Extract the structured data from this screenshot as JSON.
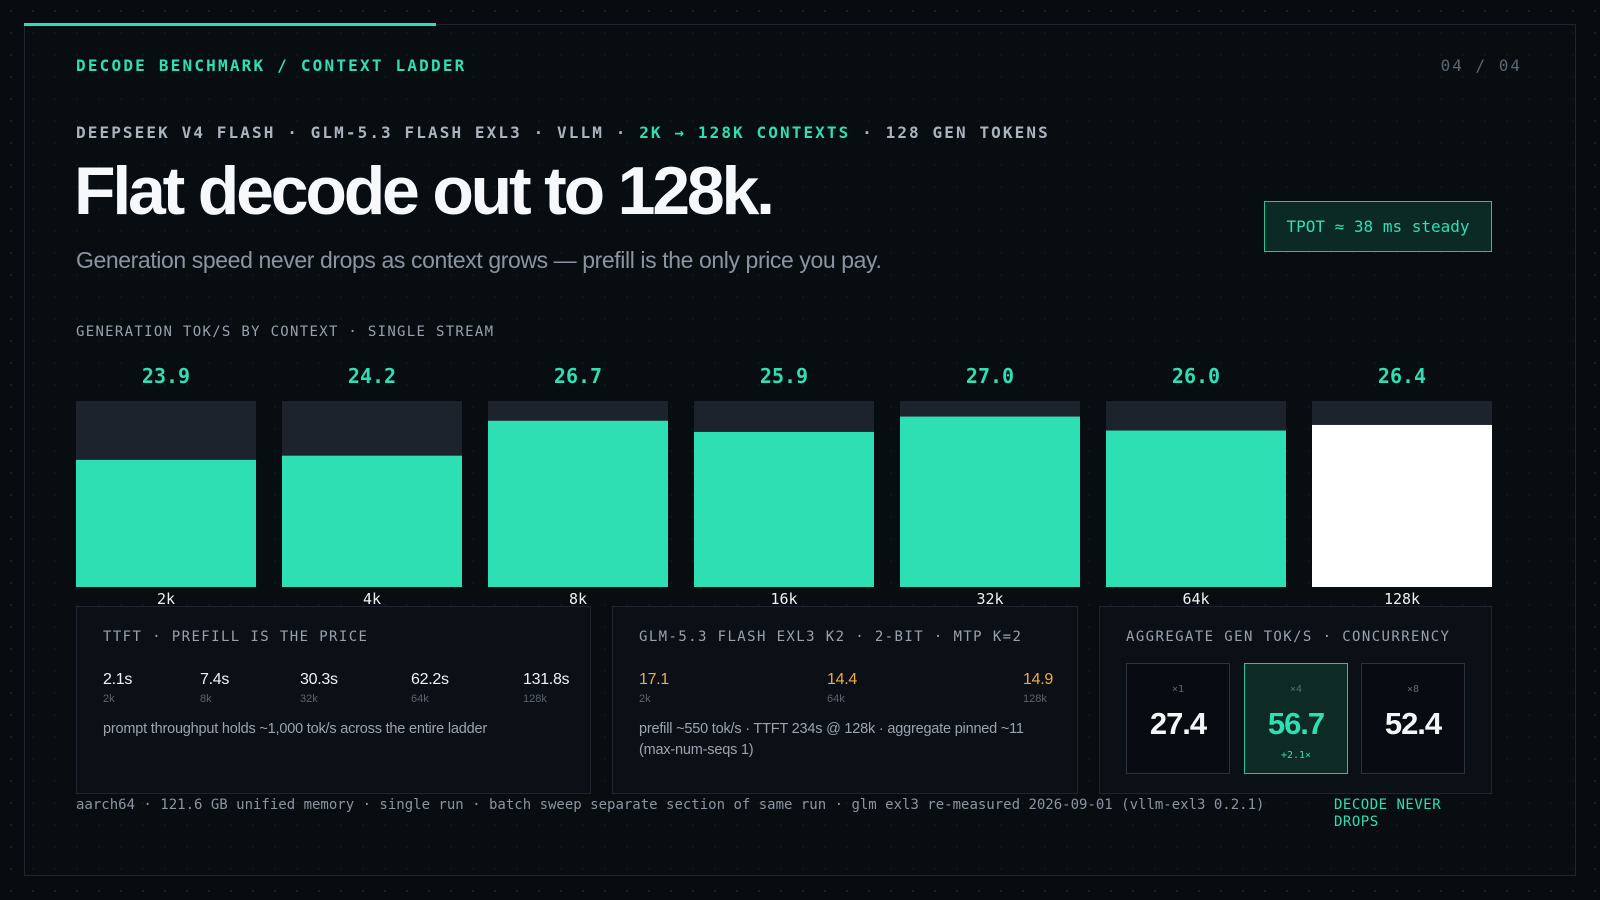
{
  "header": {
    "eyebrow": "DECODE BENCHMARK / CONTEXT LADDER",
    "page": "04 / 04",
    "meta_prefix": "DEEPSEEK V4 FLASH · GLM-5.3 FLASH EXL3 · VLLM · ",
    "meta_highlight": "2K → 128K CONTEXTS",
    "meta_suffix": " · 128 GEN TOKENS",
    "headline": "Flat decode out to 128k.",
    "subhead": "Generation speed never drops as context grows — prefill is the only price you pay.",
    "badge": "TPOT ≈ 38 ms steady"
  },
  "chart_caption": "GENERATION TOK/S BY CONTEXT · SINGLE STREAM",
  "chart_data": {
    "type": "bar",
    "categories": [
      "2k",
      "4k",
      "8k",
      "16k",
      "32k",
      "64k",
      "128k"
    ],
    "values": [
      23.9,
      24.2,
      26.7,
      25.9,
      27.0,
      26.0,
      26.4
    ],
    "value_labels": [
      "23.9",
      "24.2",
      "26.7",
      "25.9",
      "27.0",
      "26.0",
      "26.4"
    ],
    "highlight_index": 6,
    "ylim": [
      0,
      30
    ],
    "colors": {
      "bar": "#2fdfb4",
      "highlight": "#ffffff",
      "track": "#1d232c",
      "label": "#2fdfb4"
    }
  },
  "ttft_card": {
    "title": "TTFT · PREFILL IS THE PRICE",
    "stats": [
      {
        "value": "2.1s",
        "label": "2k"
      },
      {
        "value": "7.4s",
        "label": "8k"
      },
      {
        "value": "30.3s",
        "label": "32k"
      },
      {
        "value": "62.2s",
        "label": "64k"
      },
      {
        "value": "131.8s",
        "label": "128k"
      }
    ],
    "note": "prompt throughput holds ~1,000 tok/s across the entire ladder"
  },
  "glm_card": {
    "title": "GLM-5.3 FLASH EXL3 K2 · 2-BIT · MTP K=2",
    "stats": [
      {
        "value": "17.1",
        "label": "2k"
      },
      {
        "value": "14.4",
        "label": "64k"
      },
      {
        "value": "14.9",
        "label": "128k"
      }
    ],
    "note": "prefill ~550 tok/s · TTFT 234s @ 128k · aggregate pinned ~11 (max-num-seqs 1)"
  },
  "agg_card": {
    "title": "AGGREGATE GEN TOK/S · CONCURRENCY",
    "tiles": [
      {
        "label": "×1",
        "value": "27.4",
        "sub": ""
      },
      {
        "label": "×4",
        "value": "56.7",
        "sub": "+2.1×"
      },
      {
        "label": "×8",
        "value": "52.4",
        "sub": ""
      }
    ]
  },
  "footer": {
    "text": "aarch64 · 121.6 GB unified memory · single run · batch sweep separate section of same run · glm exl3 re-measured 2026-09-01 (vllm-exl3 0.2.1)",
    "tag": "DECODE NEVER DROPS"
  },
  "colors": {
    "accent": "#2fdfb4",
    "orange": "#f0a94a",
    "background": "#080c11"
  }
}
